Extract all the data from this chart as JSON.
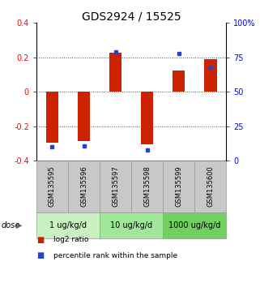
{
  "title": "GDS2924 / 15525",
  "samples": [
    "GSM135595",
    "GSM135596",
    "GSM135597",
    "GSM135598",
    "GSM135599",
    "GSM135600"
  ],
  "log2_ratio": [
    -0.295,
    -0.285,
    0.225,
    -0.305,
    0.125,
    0.19
  ],
  "percentile_rank": [
    10,
    11,
    79,
    8,
    78,
    68
  ],
  "dose_groups": [
    {
      "label": "1 ug/kg/d",
      "samples": [
        0,
        1
      ],
      "color": "#c8f0c0"
    },
    {
      "label": "10 ug/kg/d",
      "samples": [
        2,
        3
      ],
      "color": "#a0e898"
    },
    {
      "label": "1000 ug/kg/d",
      "samples": [
        4,
        5
      ],
      "color": "#70d060"
    }
  ],
  "ylim_left": [
    -0.4,
    0.4
  ],
  "ylim_right": [
    0,
    100
  ],
  "yticks_left": [
    -0.4,
    -0.2,
    0.0,
    0.2,
    0.4
  ],
  "yticks_left_labels": [
    "-0.4",
    "-0.2",
    "0",
    "0.2",
    "0.4"
  ],
  "yticks_right": [
    0,
    25,
    50,
    75,
    100
  ],
  "yticks_right_labels": [
    "0",
    "25",
    "50",
    "75",
    "100%"
  ],
  "bar_color_red": "#cc2200",
  "bar_color_blue": "#2244cc",
  "hline_color": "#cc2200",
  "dotted_color": "#555555",
  "bar_width": 0.4,
  "legend_red_label": "log2 ratio",
  "legend_blue_label": "percentile rank within the sample",
  "dose_label": "dose",
  "sample_box_color": "#c8c8c8",
  "title_fontsize": 10,
  "tick_fontsize": 7,
  "label_fontsize": 8,
  "dose_fontsize": 8
}
